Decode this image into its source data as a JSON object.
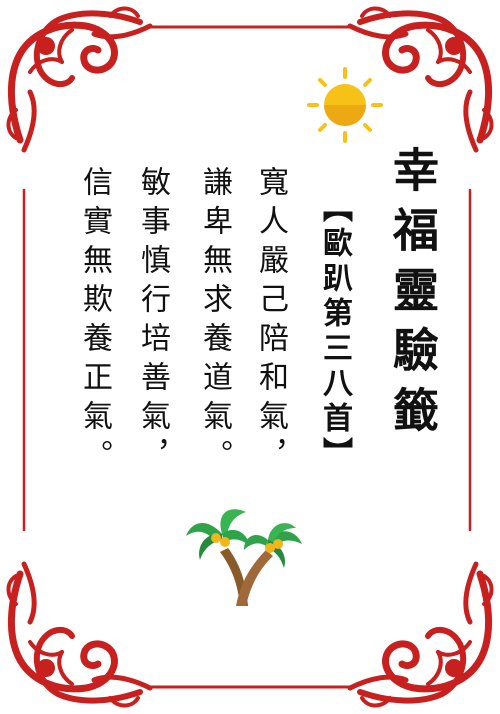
{
  "title": "幸福靈驗籤",
  "subtitle": "【歐趴第三八首】",
  "poem": [
    "寬人嚴己陪和氣，",
    "謙卑無求養道氣。",
    "敏事慎行培善氣，",
    "信實無欺養正氣。"
  ],
  "colors": {
    "frame_red": "#c8201e",
    "sun": "#f7c218",
    "palm_leaf": "#2fa34a",
    "coconut": "#f2b51c",
    "trunk": "#8b5a2b"
  },
  "icons": [
    "sun-icon",
    "palm-tree-icon",
    "ornamental-corner-icon"
  ]
}
